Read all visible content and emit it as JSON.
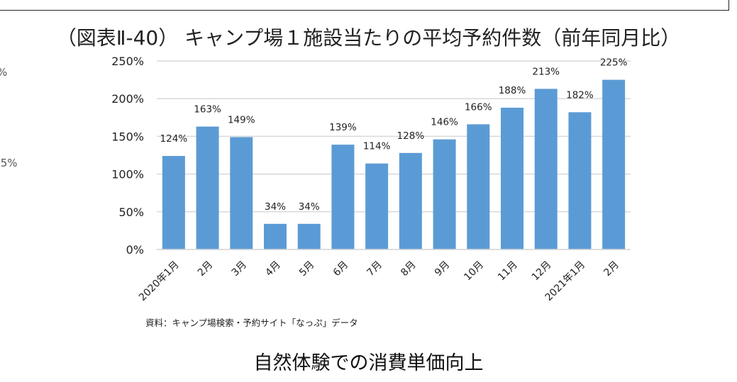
{
  "chart_data": {
    "type": "bar",
    "title": "（図表Ⅱ-40） キャンプ場１施設当たりの平均予約件数（前年同月比）",
    "categories": [
      "2020年1月",
      "2月",
      "3月",
      "4月",
      "5月",
      "6月",
      "7月",
      "8月",
      "9月",
      "10月",
      "11月",
      "12月",
      "2021年1月",
      "2月"
    ],
    "values": [
      124,
      163,
      149,
      34,
      34,
      139,
      114,
      128,
      146,
      166,
      188,
      213,
      182,
      225
    ],
    "data_labels": [
      "124%",
      "163%",
      "149%",
      "34%",
      "34%",
      "139%",
      "114%",
      "128%",
      "146%",
      "166%",
      "188%",
      "213%",
      "182%",
      "225%"
    ],
    "ylim": [
      0,
      250
    ],
    "yticks": [
      "0%",
      "50%",
      "100%",
      "150%",
      "200%",
      "250%"
    ],
    "ytick_values": [
      0,
      50,
      100,
      150,
      200,
      250
    ],
    "grid": true,
    "bar_color": "#5b9bd5",
    "xlabel": "",
    "ylabel": ""
  },
  "source": "資料：キャンプ場検索・予約サイト「なっぷ」データ",
  "subtitle": "自然体験での消費単価向上",
  "left_fragments": [
    "%",
    ".5%"
  ]
}
